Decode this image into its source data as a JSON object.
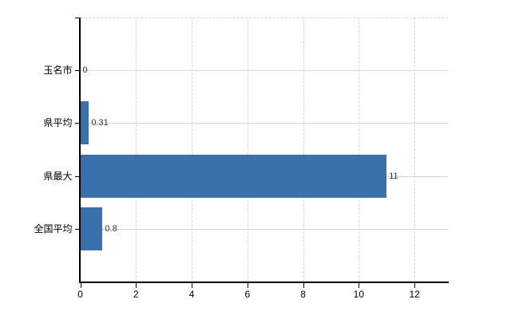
{
  "chart_data": {
    "type": "bar",
    "orientation": "horizontal",
    "title": "",
    "xlabel": "",
    "ylabel": "",
    "categories": [
      "玉名市",
      "県平均",
      "県最大",
      "全国平均"
    ],
    "values": [
      0,
      0.31,
      11,
      0.8
    ],
    "value_labels": [
      "0",
      "0.31",
      "11",
      "0.8"
    ],
    "x_ticks": [
      0,
      2,
      4,
      6,
      8,
      10,
      12
    ],
    "x_tick_labels": [
      "0",
      "2",
      "4",
      "6",
      "8",
      "10",
      "12"
    ],
    "xlim": [
      0,
      13.2
    ],
    "grid": true,
    "legend": "none",
    "colors": {
      "bar": "#3c70ac",
      "grid": "#d2d7d2",
      "axis": "#000000",
      "tick_label": "#000000",
      "value_label": "#333333",
      "background": "#ffffff"
    }
  }
}
